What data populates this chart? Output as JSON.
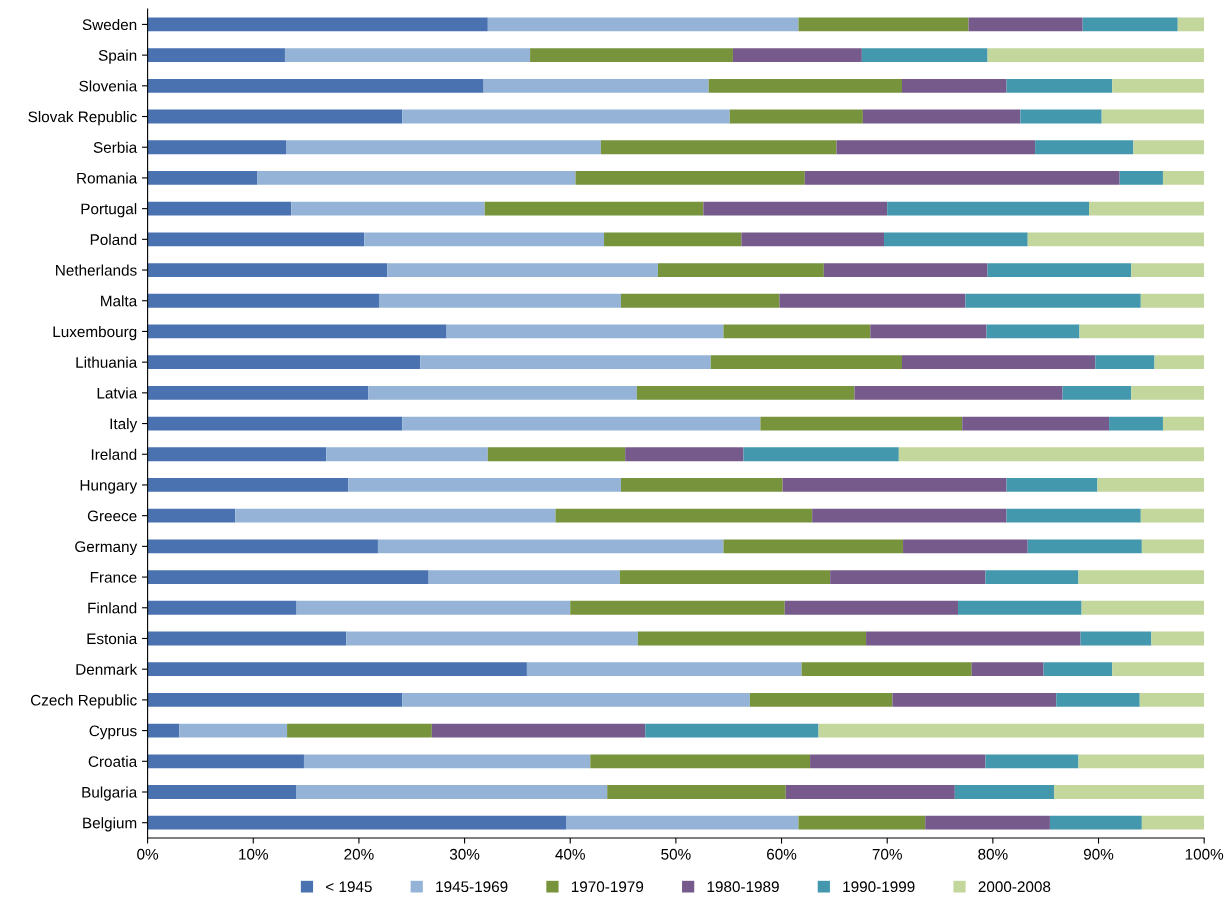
{
  "chart_data": {
    "type": "bar",
    "orientation": "horizontal",
    "stacked": true,
    "legend": "bottom",
    "grid": false,
    "categories": [
      "Sweden",
      "Spain",
      "Slovenia",
      "Slovak Republic",
      "Serbia",
      "Romania",
      "Portugal",
      "Poland",
      "Netherlands",
      "Malta",
      "Luxembourg",
      "Lithuania",
      "Latvia",
      "Italy",
      "Ireland",
      "Hungary",
      "Greece",
      "Germany",
      "France",
      "Finland",
      "Estonia",
      "Denmark",
      "Czech Republic",
      "Cyprus",
      "Croatia",
      "Bulgaria",
      "Belgium"
    ],
    "xlim": [
      0,
      100
    ],
    "xticks": [
      {
        "value": 0,
        "label": "0%"
      },
      {
        "value": 10,
        "label": "10%"
      },
      {
        "value": 20,
        "label": "20%"
      },
      {
        "value": 30,
        "label": "30%"
      },
      {
        "value": 40,
        "label": "40%"
      },
      {
        "value": 50,
        "label": "50%"
      },
      {
        "value": 60,
        "label": "60%"
      },
      {
        "value": 70,
        "label": "70%"
      },
      {
        "value": 80,
        "label": "80%"
      },
      {
        "value": 90,
        "label": "90%"
      },
      {
        "value": 100,
        "label": "100%"
      }
    ],
    "series": [
      {
        "name": "< 1945",
        "color": "#4a72b0",
        "values": [
          32.2,
          13.0,
          31.8,
          24.1,
          13.1,
          10.4,
          13.6,
          20.5,
          22.7,
          21.9,
          28.3,
          25.8,
          20.9,
          24.1,
          16.9,
          19.0,
          8.3,
          21.8,
          26.6,
          14.1,
          18.8,
          35.9,
          24.1,
          3.0,
          14.8,
          14.1,
          39.6
        ]
      },
      {
        "name": "1945-1969",
        "color": "#95b3d7",
        "values": [
          29.4,
          23.2,
          21.3,
          31.0,
          29.8,
          30.1,
          18.3,
          22.7,
          25.6,
          22.9,
          26.2,
          27.5,
          25.4,
          33.9,
          15.3,
          25.8,
          30.3,
          32.7,
          18.1,
          25.9,
          27.6,
          26.0,
          32.9,
          10.2,
          27.1,
          29.4,
          22.0
        ]
      },
      {
        "name": "1970-1979",
        "color": "#77933c",
        "values": [
          16.1,
          19.2,
          18.3,
          12.6,
          22.3,
          21.7,
          20.7,
          13.0,
          15.7,
          15.0,
          13.9,
          18.1,
          20.6,
          19.1,
          13.0,
          15.3,
          24.3,
          17.0,
          19.9,
          20.3,
          21.6,
          16.1,
          13.5,
          13.7,
          20.8,
          16.9,
          12.0
        ]
      },
      {
        "name": "1980-1989",
        "color": "#775a8c",
        "values": [
          10.8,
          12.2,
          9.9,
          14.9,
          18.8,
          29.8,
          17.4,
          13.5,
          15.5,
          17.6,
          11.0,
          18.3,
          19.7,
          13.9,
          11.2,
          21.2,
          18.4,
          11.8,
          14.7,
          16.4,
          20.3,
          6.8,
          15.5,
          20.2,
          16.6,
          16.0,
          11.8
        ]
      },
      {
        "name": "1990-1999",
        "color": "#4398ae",
        "values": [
          9.0,
          11.9,
          10.0,
          7.7,
          9.3,
          4.1,
          19.1,
          13.6,
          13.6,
          16.6,
          8.8,
          5.6,
          6.5,
          5.1,
          14.7,
          8.6,
          12.7,
          10.8,
          8.8,
          11.7,
          6.7,
          6.5,
          7.9,
          16.4,
          8.8,
          9.4,
          8.7
        ]
      },
      {
        "name": "2000-2008",
        "color": "#c3d69b",
        "values": [
          2.5,
          20.5,
          8.7,
          9.7,
          6.7,
          3.9,
          10.9,
          16.7,
          6.9,
          6.0,
          11.8,
          4.7,
          6.9,
          3.9,
          28.9,
          10.1,
          6.0,
          5.9,
          11.9,
          11.6,
          5.0,
          8.7,
          6.1,
          36.5,
          11.9,
          14.2,
          5.9
        ]
      }
    ]
  }
}
